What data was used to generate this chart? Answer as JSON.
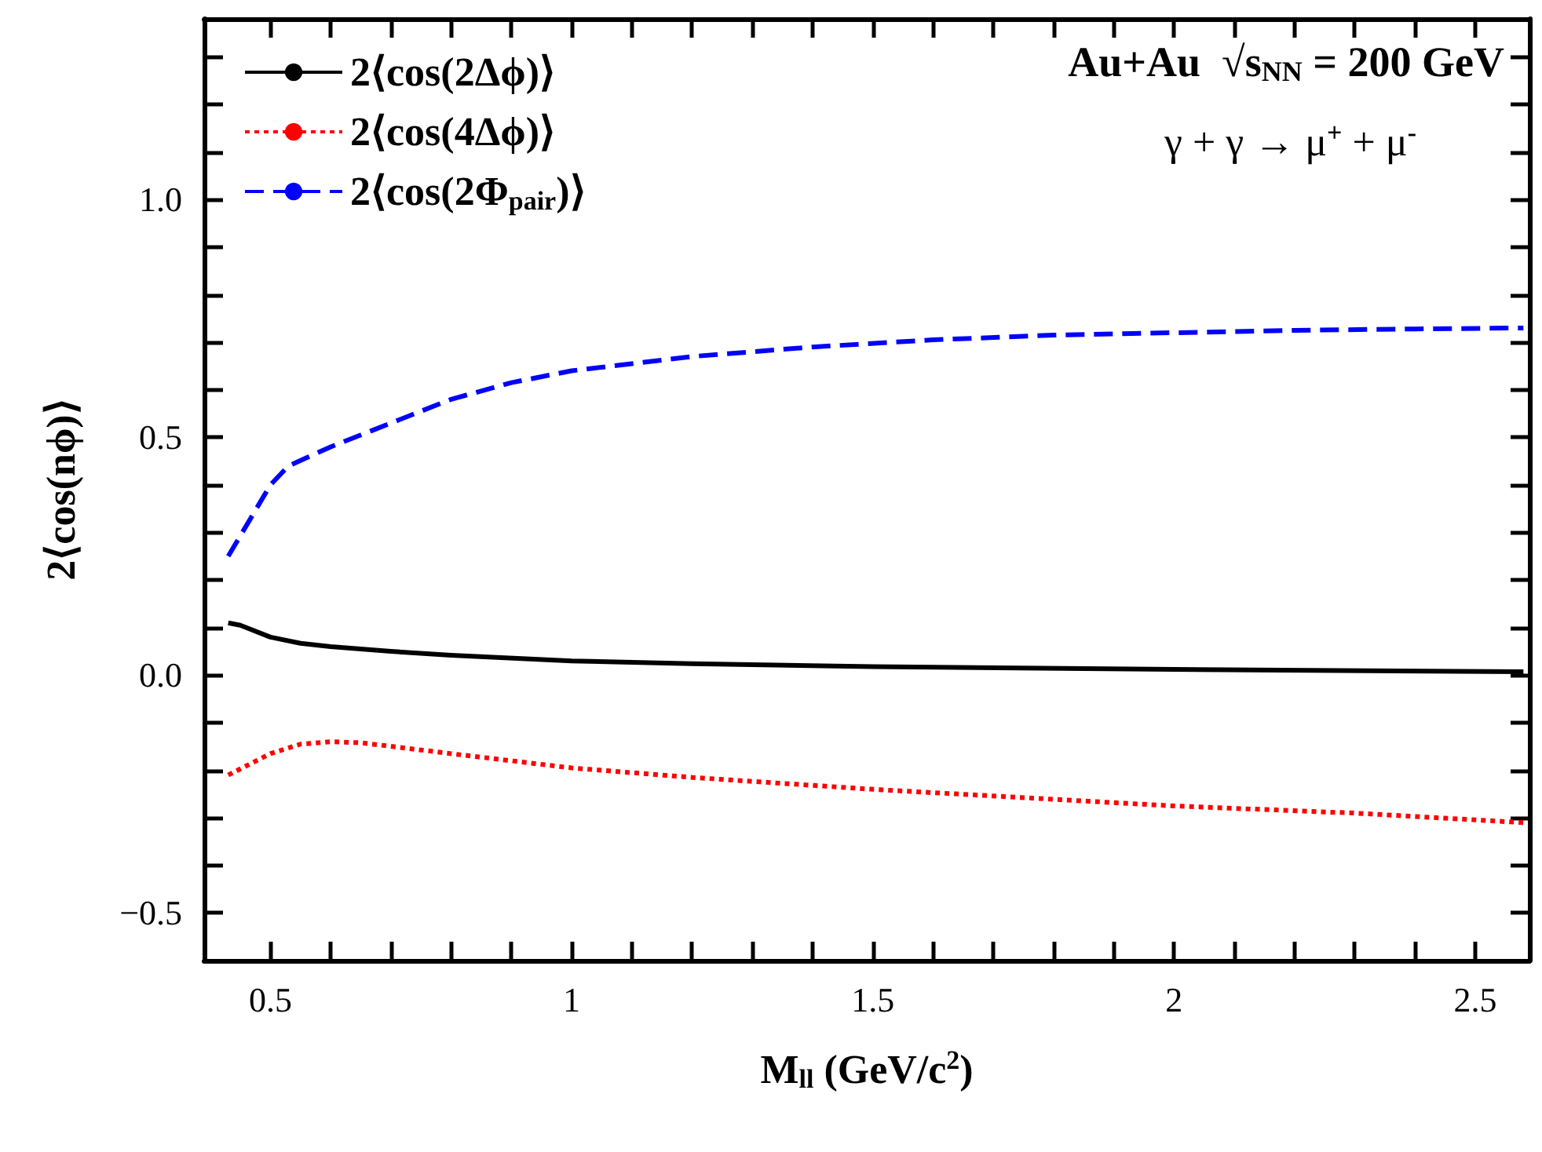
{
  "chart_data": {
    "type": "line",
    "xlabel": "M$_{ll}$ (GeV/c$^{2}$)",
    "ylabel": "2⟨cos(nϕ)⟩",
    "annotations": [
      "Au+Au  √s$_{NN}$ = 200 GeV",
      "γ + γ → μ$^{+}$ + μ$^{-}$"
    ],
    "xlim": [
      0.39,
      2.59
    ],
    "ylim": [
      -0.6,
      1.38
    ],
    "xticks": [
      0.5,
      {
        "value": 0.6,
        "label": null
      },
      {
        "value": 0.7,
        "label": null
      },
      {
        "value": 0.8,
        "label": null
      },
      {
        "value": 0.9,
        "label": null
      },
      1,
      {
        "value": 1.1,
        "label": null
      },
      {
        "value": 1.2,
        "label": null
      },
      {
        "value": 1.3,
        "label": null
      },
      {
        "value": 1.4,
        "label": null
      },
      1.5,
      {
        "value": 1.6,
        "label": null
      },
      {
        "value": 1.7,
        "label": null
      },
      {
        "value": 1.8,
        "label": null
      },
      {
        "value": 1.9,
        "label": null
      },
      2,
      {
        "value": 2.1,
        "label": null
      },
      {
        "value": 2.2,
        "label": null
      },
      {
        "value": 2.3,
        "label": null
      },
      {
        "value": 2.4,
        "label": null
      },
      2.5
    ],
    "yticks": [
      {
        "value": -0.5,
        "label": "−0.5"
      },
      {
        "value": -0.4,
        "label": null
      },
      {
        "value": -0.3,
        "label": null
      },
      {
        "value": -0.2,
        "label": null
      },
      {
        "value": -0.1,
        "label": null
      },
      {
        "value": 0,
        "label": "0.0"
      },
      {
        "value": 0.1,
        "label": null
      },
      {
        "value": 0.2,
        "label": null
      },
      {
        "value": 0.3,
        "label": null
      },
      {
        "value": 0.4,
        "label": null
      },
      {
        "value": 0.5,
        "label": "0.5"
      },
      {
        "value": 0.6,
        "label": null
      },
      {
        "value": 0.7,
        "label": null
      },
      {
        "value": 0.8,
        "label": null
      },
      {
        "value": 0.9,
        "label": null
      },
      {
        "value": 1.0,
        "label": "1.0"
      },
      {
        "value": 1.1,
        "label": null
      },
      {
        "value": 1.2,
        "label": null
      },
      {
        "value": 1.3,
        "label": null
      }
    ],
    "grid": false,
    "legend": "top left",
    "marker": "none",
    "series": [
      {
        "name": "2⟨cos(2Δϕ)⟩",
        "color": "#000000",
        "line_style": "solid",
        "x": [
          0.43,
          0.45,
          0.5,
          0.55,
          0.6,
          0.7,
          0.8,
          1.0,
          1.2,
          1.5,
          2.0,
          2.58
        ],
        "values": [
          0.11,
          0.105,
          0.08,
          0.067,
          0.06,
          0.05,
          0.042,
          0.03,
          0.024,
          0.018,
          0.012,
          0.007
        ]
      },
      {
        "name": "2⟨cos(4Δϕ)⟩",
        "color": "#ff0000",
        "line_style": "dotted",
        "x": [
          0.43,
          0.5,
          0.55,
          0.6,
          0.65,
          0.8,
          1.0,
          1.2,
          1.5,
          2.0,
          2.3,
          2.58
        ],
        "values": [
          -0.21,
          -0.165,
          -0.145,
          -0.14,
          -0.142,
          -0.165,
          -0.195,
          -0.215,
          -0.24,
          -0.275,
          -0.29,
          -0.31
        ]
      },
      {
        "name": "2⟨cos(2Φ$_{pair}$)⟩",
        "color": "#0000ff",
        "line_style": "dashed",
        "x": [
          0.43,
          0.5,
          0.53,
          0.6,
          0.7,
          0.8,
          0.9,
          1.0,
          1.2,
          1.4,
          1.6,
          1.8,
          2.0,
          2.2,
          2.4,
          2.58
        ],
        "values": [
          0.25,
          0.4,
          0.44,
          0.48,
          0.53,
          0.58,
          0.615,
          0.64,
          0.67,
          0.69,
          0.705,
          0.715,
          0.72,
          0.725,
          0.728,
          0.73
        ]
      }
    ]
  }
}
